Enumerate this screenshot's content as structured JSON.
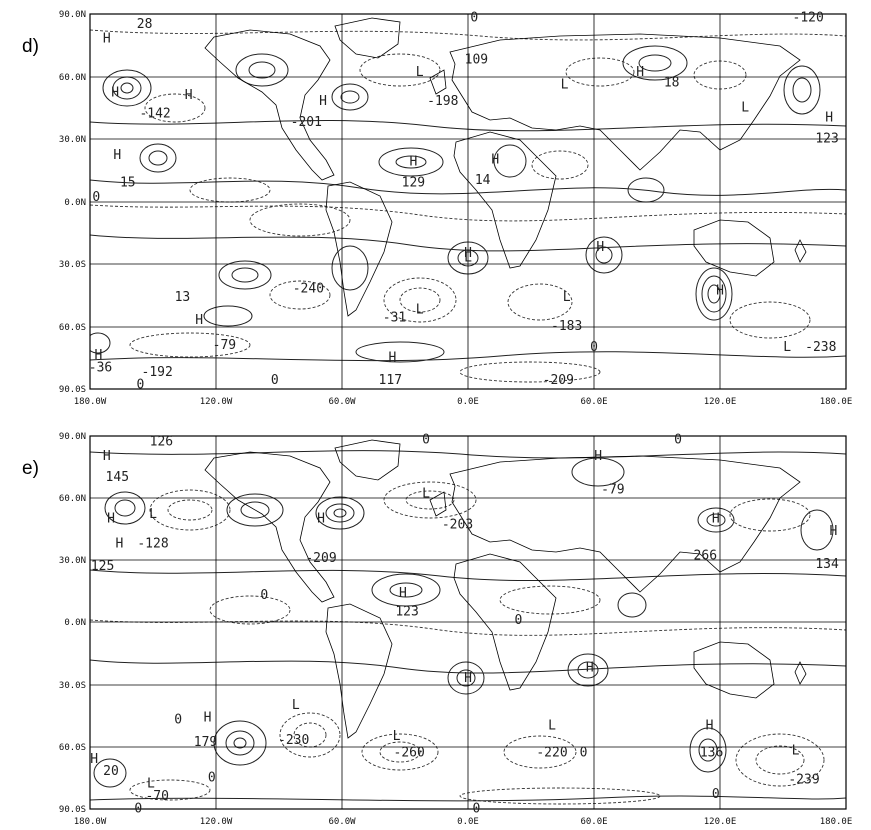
{
  "panels": [
    {
      "label": "d)",
      "lat_labels": [
        "90.0N",
        "60.0N",
        "30.0N",
        "0.0N",
        "30.0S",
        "60.0S",
        "90.0S"
      ],
      "lon_labels": [
        "180.0W",
        "120.0W",
        "60.0W",
        "0.0E",
        "60.0E",
        "120.0E",
        "180.0E"
      ],
      "markers": [
        {
          "text": "H",
          "lon": -172,
          "lat": 78
        },
        {
          "text": "H",
          "lon": -168,
          "lat": 52
        },
        {
          "text": "H",
          "lon": -133,
          "lat": 51
        },
        {
          "text": "H",
          "lon": -69,
          "lat": 48
        },
        {
          "text": "L",
          "lon": -23,
          "lat": 62
        },
        {
          "text": "H",
          "lon": -167,
          "lat": 22
        },
        {
          "text": "H",
          "lon": -26,
          "lat": 19
        },
        {
          "text": "H",
          "lon": 13,
          "lat": 20
        },
        {
          "text": "L",
          "lon": 46,
          "lat": 56
        },
        {
          "text": "H",
          "lon": 82,
          "lat": 62
        },
        {
          "text": "L",
          "lon": 132,
          "lat": 45
        },
        {
          "text": "H",
          "lon": 172,
          "lat": 40
        },
        {
          "text": "L",
          "lon": 0,
          "lat": -27
        },
        {
          "text": "H",
          "lon": 0,
          "lat": -25
        },
        {
          "text": "H",
          "lon": 63,
          "lat": -22
        },
        {
          "text": "L",
          "lon": 47,
          "lat": -46
        },
        {
          "text": "H",
          "lon": 120,
          "lat": -43
        },
        {
          "text": "H",
          "lon": -128,
          "lat": -57
        },
        {
          "text": "H",
          "lon": -176,
          "lat": -74
        },
        {
          "text": "H",
          "lon": -36,
          "lat": -75
        },
        {
          "text": "L",
          "lon": -23,
          "lat": -52
        },
        {
          "text": "L",
          "lon": 152,
          "lat": -70
        }
      ],
      "values": [
        {
          "text": "28",
          "lon": -154,
          "lat": 85
        },
        {
          "text": "109",
          "lon": 4,
          "lat": 68
        },
        {
          "text": "-120",
          "lon": 162,
          "lat": 88
        },
        {
          "text": "18",
          "lon": 97,
          "lat": 57
        },
        {
          "text": "-142",
          "lon": -149,
          "lat": 42
        },
        {
          "text": "-201",
          "lon": -77,
          "lat": 38
        },
        {
          "text": "-198",
          "lon": -12,
          "lat": 48
        },
        {
          "text": "123",
          "lon": 171,
          "lat": 30
        },
        {
          "text": "15",
          "lon": -162,
          "lat": 9
        },
        {
          "text": "129",
          "lon": -26,
          "lat": 9
        },
        {
          "text": "14",
          "lon": 7,
          "lat": 10
        },
        {
          "text": "13",
          "lon": -136,
          "lat": -46
        },
        {
          "text": "-240",
          "lon": -76,
          "lat": -42
        },
        {
          "text": "-31",
          "lon": -35,
          "lat": -56
        },
        {
          "text": "-183",
          "lon": 47,
          "lat": -60
        },
        {
          "text": "-79",
          "lon": -116,
          "lat": -69
        },
        {
          "text": "-192",
          "lon": -148,
          "lat": -82
        },
        {
          "text": "-36",
          "lon": -175,
          "lat": -80
        },
        {
          "text": "117",
          "lon": -37,
          "lat": -86
        },
        {
          "text": "-209",
          "lon": 43,
          "lat": -86
        },
        {
          "text": "-238",
          "lon": 168,
          "lat": -70
        },
        {
          "text": "0",
          "lon": 3,
          "lat": 88
        },
        {
          "text": "0",
          "lon": -177,
          "lat": 2
        },
        {
          "text": "0",
          "lon": -92,
          "lat": -86
        },
        {
          "text": "0",
          "lon": -156,
          "lat": -88
        },
        {
          "text": "0",
          "lon": 60,
          "lat": -70
        }
      ]
    },
    {
      "label": "e)",
      "lat_labels": [
        "90.0N",
        "60.0N",
        "30.0N",
        "0.0N",
        "30.0S",
        "60.0S",
        "90.0S"
      ],
      "lon_labels": [
        "180.0W",
        "120.0W",
        "60.0W",
        "0.0E",
        "60.0E",
        "120.0E",
        "180.0E"
      ],
      "markers": [
        {
          "text": "H",
          "lon": -172,
          "lat": 80
        },
        {
          "text": "H",
          "lon": -170,
          "lat": 50
        },
        {
          "text": "L",
          "lon": -150,
          "lat": 52
        },
        {
          "text": "H",
          "lon": -166,
          "lat": 38
        },
        {
          "text": "H",
          "lon": -70,
          "lat": 50
        },
        {
          "text": "L",
          "lon": -20,
          "lat": 62
        },
        {
          "text": "H",
          "lon": 62,
          "lat": 80
        },
        {
          "text": "H",
          "lon": 118,
          "lat": 50
        },
        {
          "text": "H",
          "lon": 174,
          "lat": 44
        },
        {
          "text": "H",
          "lon": -31,
          "lat": 14
        },
        {
          "text": "H",
          "lon": 0,
          "lat": -27
        },
        {
          "text": "H",
          "lon": 58,
          "lat": -22
        },
        {
          "text": "H",
          "lon": -124,
          "lat": -46
        },
        {
          "text": "L",
          "lon": -82,
          "lat": -40
        },
        {
          "text": "L",
          "lon": -34,
          "lat": -55
        },
        {
          "text": "L",
          "lon": 40,
          "lat": -50
        },
        {
          "text": "H",
          "lon": 115,
          "lat": -50
        },
        {
          "text": "H",
          "lon": -178,
          "lat": -66
        },
        {
          "text": "L",
          "lon": -151,
          "lat": -78
        },
        {
          "text": "L",
          "lon": 156,
          "lat": -62
        }
      ],
      "values": [
        {
          "text": "126",
          "lon": -146,
          "lat": 87
        },
        {
          "text": "145",
          "lon": -167,
          "lat": 70
        },
        {
          "text": "-128",
          "lon": -150,
          "lat": 38
        },
        {
          "text": "125",
          "lon": -174,
          "lat": 27
        },
        {
          "text": "-209",
          "lon": -70,
          "lat": 31
        },
        {
          "text": "-203",
          "lon": -5,
          "lat": 47
        },
        {
          "text": "-79",
          "lon": 69,
          "lat": 64
        },
        {
          "text": "266",
          "lon": 113,
          "lat": 32
        },
        {
          "text": "134",
          "lon": 171,
          "lat": 28
        },
        {
          "text": "123",
          "lon": -29,
          "lat": 5
        },
        {
          "text": "179",
          "lon": -125,
          "lat": -58
        },
        {
          "text": "-230",
          "lon": -83,
          "lat": -57
        },
        {
          "text": "-260",
          "lon": -28,
          "lat": -63
        },
        {
          "text": "-220",
          "lon": 40,
          "lat": -63
        },
        {
          "text": "136",
          "lon": 116,
          "lat": -63
        },
        {
          "text": "-70",
          "lon": -148,
          "lat": -84
        },
        {
          "text": "-239",
          "lon": 160,
          "lat": -76
        },
        {
          "text": "20",
          "lon": -170,
          "lat": -72
        },
        {
          "text": "0",
          "lon": 100,
          "lat": 88
        },
        {
          "text": "0",
          "lon": -20,
          "lat": 88
        },
        {
          "text": "0",
          "lon": -97,
          "lat": 13
        },
        {
          "text": "0",
          "lon": -138,
          "lat": -47
        },
        {
          "text": "0",
          "lon": -122,
          "lat": -75
        },
        {
          "text": "0",
          "lon": 55,
          "lat": -63
        },
        {
          "text": "0",
          "lon": 118,
          "lat": -83
        },
        {
          "text": "0",
          "lon": -157,
          "lat": -90
        },
        {
          "text": "0",
          "lon": 4,
          "lat": -90
        },
        {
          "text": "0",
          "lon": 24,
          "lat": 1
        }
      ]
    }
  ]
}
